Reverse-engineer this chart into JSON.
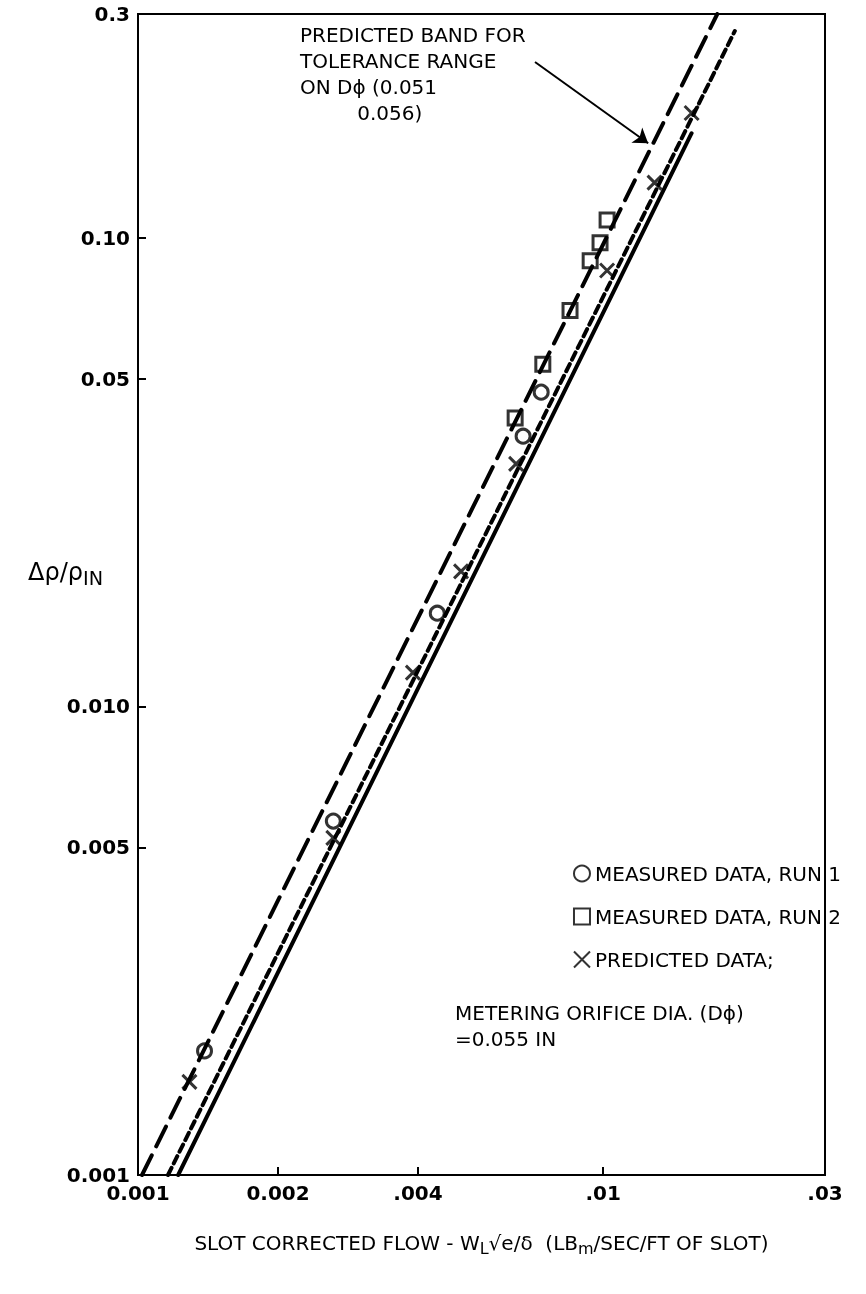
{
  "chart_data": {
    "type": "scatter",
    "xlabel": "SLOT CORRECTED FLOW - W$_{L}$√e/δ  (LB$_{m}$/SEC/FT OF SLOT)",
    "ylabel": "Δρ/ρ$_{IN}$",
    "log": "xy",
    "grid": false,
    "legend": "bottom right",
    "xlim": [
      0.001,
      0.03
    ],
    "xticks": [
      0.001,
      0.002,
      {
        "value": 0.004,
        "label": ".004"
      },
      {
        "value": 0.01,
        "label": ".01"
      },
      {
        "value": 0.03,
        "label": ".03"
      }
    ],
    "ylim": [
      0.001,
      0.3
    ],
    "yticks": [
      0.001,
      0.005,
      {
        "value": 0.01,
        "label": "0.010"
      },
      0.05,
      {
        "value": 0.1,
        "label": "0.10"
      },
      0.3
    ],
    "series": [
      {
        "name": "MEASURED DATA, RUN 1",
        "color": "#000000",
        "marker": "circle",
        "x": [
          0.00139,
          0.00263,
          0.0044,
          0.00673,
          0.00736
        ],
        "values": [
          0.00184,
          0.00569,
          0.0158,
          0.0377,
          0.0468
        ]
      },
      {
        "name": "MEASURED DATA, RUN 2",
        "color": "#000000",
        "marker": "square",
        "x": [
          0.00647,
          0.00742,
          0.00849,
          0.00938,
          0.00985,
          0.0102
        ],
        "values": [
          0.0412,
          0.0537,
          0.0699,
          0.0893,
          0.0975,
          0.109
        ]
      },
      {
        "name": "PREDICTED DATA;",
        "color": "#000000",
        "marker": "cross",
        "x": [
          0.00129,
          0.00263,
          0.0039,
          0.00495,
          0.0065,
          0.0102,
          0.0129,
          0.0155
        ],
        "values": [
          0.00158,
          0.00524,
          0.0118,
          0.0194,
          0.0329,
          0.0851,
          0.131,
          0.1845
        ]
      },
      {
        "type": "line",
        "color": "#000000",
        "line_style": "dashed",
        "marker": "none",
        "x": [
          0.00102,
          0.0176
        ],
        "values": [
          0.001,
          0.3
        ]
      },
      {
        "type": "line",
        "color": "#000000",
        "line_style": "dotted",
        "marker": "none",
        "x": [
          0.00116,
          0.0192
        ],
        "values": [
          0.001,
          0.276
        ]
      },
      {
        "type": "line",
        "color": "#000000",
        "line_style": "solid",
        "marker": "none",
        "x": [
          0.00122,
          0.0155
        ],
        "values": [
          0.001,
          0.167
        ]
      }
    ],
    "annotations": [
      {
        "text": "PREDICTED BAND FOR\nTOLERANCE RANGE\nON Dϕ (0.051\n         0.056)",
        "x": 0.0125,
        "y": 0.159
      },
      "METERING ORIFICE DIA. (Dϕ)\n=0.055 IN"
    ]
  }
}
